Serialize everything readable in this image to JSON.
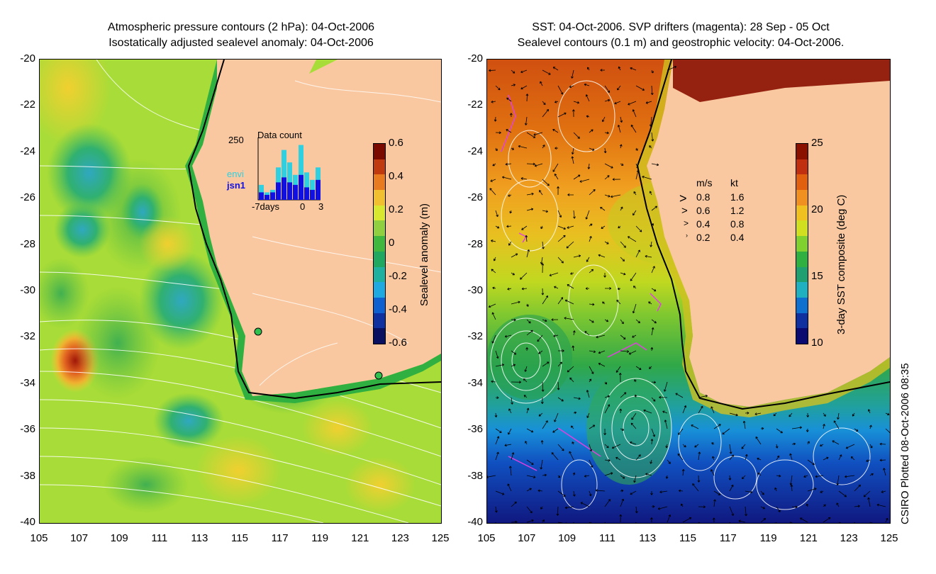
{
  "left_panel": {
    "title_line1": "Atmospheric pressure contours (2 hPa): 04-Oct-2006",
    "title_line2": "Isostatically adjusted sealevel anomaly: 04-Oct-2006",
    "colorbar_label": "Sealevel anomaly (m)",
    "colorbar_ticks": [
      "0.6",
      "0.4",
      "0.2",
      "0",
      "-0.2",
      "-0.4",
      "-0.6"
    ],
    "colorbar_colors": [
      "#7a0a00",
      "#c03a10",
      "#e87a20",
      "#f0c030",
      "#d8e830",
      "#90d040",
      "#40b840",
      "#20a860",
      "#20b0a0",
      "#20a8e0",
      "#1060d0",
      "#1030a0",
      "#0a1060"
    ],
    "inset": {
      "title": "Data count",
      "ymax": "250",
      "series1": "envi",
      "series2": "jsn1",
      "series1_color": "#30d0e0",
      "series2_color": "#1010e0",
      "xlabels": [
        "-7days",
        "0",
        "3"
      ],
      "envi_counts": [
        60,
        30,
        40,
        130,
        200,
        150,
        100,
        220,
        110,
        80,
        130
      ],
      "jsn1_counts": [
        30,
        20,
        30,
        70,
        90,
        70,
        60,
        100,
        50,
        40,
        80
      ]
    }
  },
  "right_panel": {
    "title_line1": "SST: 04-Oct-2006. SVP drifters (magenta): 28 Sep - 05 Oct",
    "title_line2": "Sealevel contours (0.1 m) and geostrophic velocity: 04-Oct-2006.",
    "colorbar_label": "3-day SST composite (deg C)",
    "colorbar_ticks": [
      "25",
      "20",
      "15",
      "10"
    ],
    "colorbar_colors": [
      "#8a1000",
      "#c03010",
      "#e06010",
      "#f09020",
      "#f0c020",
      "#d0e020",
      "#80d030",
      "#30b040",
      "#20a070",
      "#20b0c0",
      "#1070d0",
      "#1030a0",
      "#0a0a70"
    ],
    "velocity_legend": {
      "header_ms": "m/s",
      "header_kt": "kt",
      "rows": [
        {
          "ms": "0.8",
          "kt": "1.6"
        },
        {
          "ms": "0.6",
          "kt": "1.2"
        },
        {
          "ms": "0.4",
          "kt": "0.8"
        },
        {
          "ms": "0.2",
          "kt": "0.4"
        }
      ]
    }
  },
  "axes": {
    "y_ticks": [
      "-20",
      "-22",
      "-24",
      "-26",
      "-28",
      "-30",
      "-32",
      "-34",
      "-36",
      "-38",
      "-40"
    ],
    "x_ticks": [
      "105",
      "107",
      "109",
      "111",
      "113",
      "115",
      "117",
      "119",
      "121",
      "123",
      "125"
    ]
  },
  "credit": "CSIRO Plotted 08-Oct-2006 08:35",
  "colors": {
    "land": "#f9c8a0",
    "coast_green": "#30b040",
    "drifter": "#e040e0"
  }
}
